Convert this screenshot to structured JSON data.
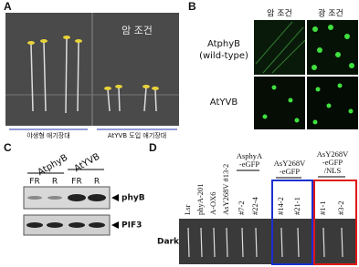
{
  "panel_a": {
    "label": "A",
    "condition": "암 조건",
    "captions": [
      "야생형 애기장대",
      "AtYVB 도입 애기장대"
    ]
  },
  "panel_b": {
    "label": "B",
    "columns": [
      "암 조건",
      "광 조건"
    ],
    "rows": [
      {
        "name": "AtphyB",
        "note": "(wild-type)"
      },
      {
        "name": "AtYVB"
      }
    ]
  },
  "panel_c": {
    "label": "C",
    "groups": [
      "AtphyB",
      "AtYVB"
    ],
    "lanes": [
      "FR",
      "R",
      "FR",
      "R"
    ],
    "bands": [
      "phyB",
      "PIF3"
    ]
  },
  "panel_d": {
    "label": "D",
    "row": "Dark",
    "lines": [
      "Lsr",
      "phyA-201",
      "A-OX6",
      "AsY268V #13-2"
    ],
    "groups": [
      {
        "header": [
          "AsphyA",
          "-eGFP"
        ],
        "lines": [
          "#7-2",
          "#22-4"
        ]
      },
      {
        "header": [
          "AsY268V",
          "-eGFP"
        ],
        "lines": [
          "#14-2",
          "#21-1"
        ]
      },
      {
        "header": [
          "AsY268V",
          "-eGFP",
          "/NLS"
        ],
        "lines": [
          "#1-1",
          "#3-2"
        ]
      }
    ]
  }
}
